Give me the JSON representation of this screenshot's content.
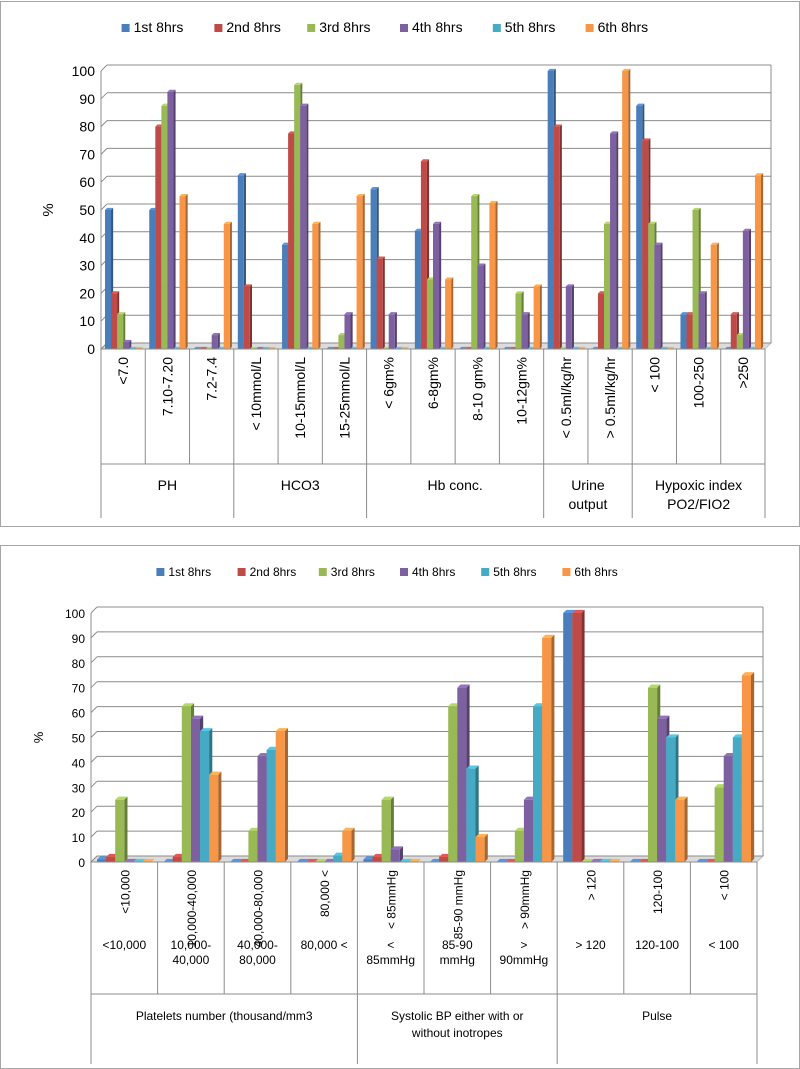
{
  "chart_data": [
    {
      "type": "bar",
      "title": "",
      "ylabel": "%",
      "ylim": [
        0,
        100
      ],
      "yticks": [
        0,
        10,
        20,
        30,
        40,
        50,
        60,
        70,
        80,
        90,
        100
      ],
      "grid": true,
      "legend_position": "top",
      "series_colors": [
        "#4a7ebb",
        "#be4b48",
        "#98b954",
        "#7d60a0",
        "#46aac5",
        "#f79646"
      ],
      "categories": [
        "<7.0",
        "7.10-7.20",
        "7.2-7.4",
        "< 10mmol/L",
        "10-15mmol/L",
        "15-25mmol/L",
        "< 6gm%",
        "6-8gm%",
        "8-10 gm%",
        "10-12gm%",
        "< 0.5ml/kg/hr",
        "> 0.5ml/kg/hr",
        "< 100",
        "100-250",
        ">250"
      ],
      "groups": [
        {
          "label": "PH",
          "count": 3
        },
        {
          "label": "HCO3",
          "count": 3
        },
        {
          "label": "Hb conc.",
          "count": 4
        },
        {
          "label": "Urine output",
          "count": 2
        },
        {
          "label": "Hypoxic index PO2/FIO2",
          "count": 3
        }
      ],
      "series": [
        {
          "name": "1st 8hrs",
          "values": [
            50,
            50,
            0,
            62.5,
            37.5,
            0,
            57.5,
            42.5,
            0,
            0,
            100,
            0,
            87.5,
            12.5,
            0
          ]
        },
        {
          "name": "2nd 8hrs",
          "values": [
            20,
            80,
            0,
            22.5,
            77.5,
            0,
            32.5,
            67.5,
            0,
            0,
            80,
            20,
            75,
            12.5,
            12.5
          ]
        },
        {
          "name": "3rd 8hrs",
          "values": [
            12.5,
            87.5,
            0,
            0,
            95,
            5,
            0,
            25,
            55,
            20,
            0,
            45,
            45,
            50,
            5
          ]
        },
        {
          "name": "4th 8hrs",
          "values": [
            2.5,
            92.5,
            5,
            0,
            87.5,
            12.5,
            12.5,
            45,
            30,
            12.5,
            22.5,
            77.5,
            37.5,
            20,
            42.5
          ]
        },
        {
          "name": "5th 8hrs",
          "values": [
            0,
            0,
            0,
            0,
            0,
            0,
            0,
            0,
            0,
            0,
            0,
            0,
            0,
            0,
            0
          ]
        },
        {
          "name": "6th 8hrs",
          "values": [
            0,
            55,
            45,
            0,
            45,
            55,
            0,
            25,
            52.5,
            22.5,
            0,
            100,
            0,
            37.5,
            62.5
          ]
        }
      ]
    },
    {
      "type": "bar",
      "title": "",
      "ylabel": "%",
      "ylim": [
        0,
        100
      ],
      "yticks": [
        0,
        10,
        20,
        30,
        40,
        50,
        60,
        70,
        80,
        90,
        100
      ],
      "grid": true,
      "legend_position": "top",
      "series_colors": [
        "#4a7ebb",
        "#be4b48",
        "#98b954",
        "#7d60a0",
        "#46aac5",
        "#f79646"
      ],
      "categories": [
        "<10,000",
        "10,000-40,000",
        "40,000-80,000",
        "80,000 <",
        "< 85mmHg",
        "85-90 mmHg",
        "> 90mmHg",
        "> 120",
        "120-100",
        "< 100"
      ],
      "row2_labels": [
        [
          "<10,000"
        ],
        [
          "10,000-",
          "40,000"
        ],
        [
          "40,000-",
          "80,000"
        ],
        [
          "80,000 <"
        ],
        [
          "<",
          "85mmHg"
        ],
        [
          "85-90",
          "mmHg"
        ],
        [
          ">",
          "90mmHg"
        ],
        [
          "> 120"
        ],
        [
          "120-100"
        ],
        [
          "< 100"
        ]
      ],
      "groups": [
        {
          "label": "Platelets number (thousand/mm3",
          "count": 4
        },
        {
          "label": "Systolic BP either with or without inotropes",
          "count": 3
        },
        {
          "label": "Pulse",
          "count": 3
        }
      ],
      "series": [
        {
          "name": "1st 8hrs",
          "values": [
            1,
            0,
            0,
            0,
            1,
            0,
            0,
            100,
            0,
            0
          ]
        },
        {
          "name": "2nd 8hrs",
          "values": [
            2,
            2,
            0,
            0,
            2,
            2,
            0,
            100,
            0,
            0
          ]
        },
        {
          "name": "3rd 8hrs",
          "values": [
            25,
            62.5,
            12.5,
            0,
            25,
            62.5,
            12.5,
            0,
            70,
            30
          ]
        },
        {
          "name": "4th 8hrs",
          "values": [
            0,
            57.5,
            42.5,
            0,
            5,
            70,
            25,
            0,
            57.5,
            42.5
          ]
        },
        {
          "name": "5th 8hrs",
          "values": [
            0,
            52.5,
            45,
            2.5,
            0,
            37.5,
            62.5,
            0,
            50,
            50
          ]
        },
        {
          "name": "6th 8hrs",
          "values": [
            0,
            35,
            52.5,
            12.5,
            0,
            10,
            90,
            0,
            25,
            75
          ]
        }
      ]
    }
  ]
}
